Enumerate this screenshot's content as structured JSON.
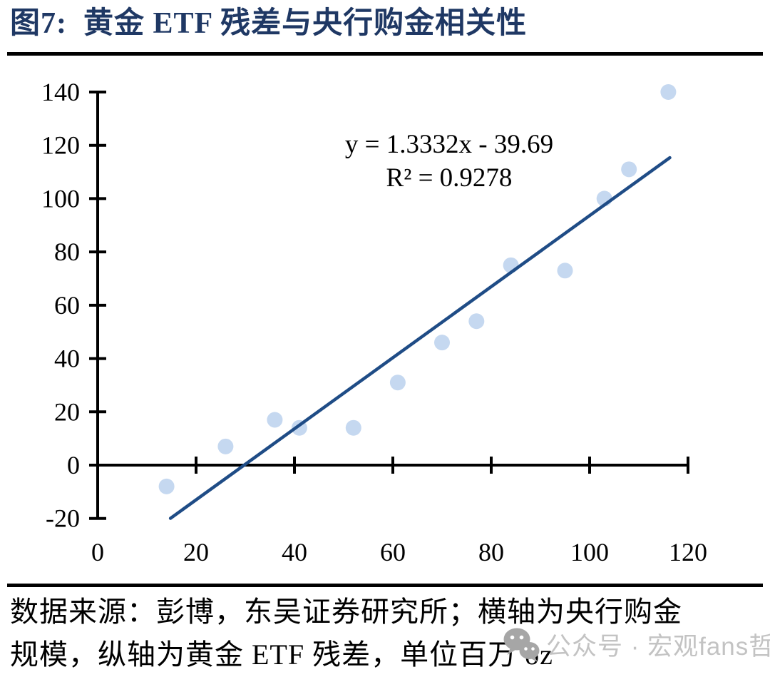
{
  "header": {
    "title": "图7:  黄金 ETF 残差与央行购金相关性"
  },
  "chart_data": {
    "type": "scatter",
    "title": "",
    "xlabel": "",
    "ylabel": "",
    "xlim": [
      0,
      120
    ],
    "ylim": [
      -20,
      140
    ],
    "x_ticks": [
      0,
      20,
      40,
      60,
      80,
      100,
      120
    ],
    "y_ticks": [
      -20,
      0,
      20,
      40,
      60,
      80,
      100,
      120,
      140
    ],
    "grid": "off",
    "legend": "none",
    "points": [
      {
        "x": 14,
        "y": -8
      },
      {
        "x": 26,
        "y": 7
      },
      {
        "x": 36,
        "y": 17
      },
      {
        "x": 41,
        "y": 14
      },
      {
        "x": 52,
        "y": 14
      },
      {
        "x": 61,
        "y": 31
      },
      {
        "x": 70,
        "y": 46
      },
      {
        "x": 77,
        "y": 54
      },
      {
        "x": 84,
        "y": 75
      },
      {
        "x": 95,
        "y": 73
      },
      {
        "x": 103,
        "y": 100
      },
      {
        "x": 108,
        "y": 111
      },
      {
        "x": 116,
        "y": 140
      }
    ],
    "trendline": {
      "slope": 1.3332,
      "intercept": -39.69,
      "x_start": 14.8,
      "x_end": 116.3,
      "label_line1": "y = 1.3332x - 39.69",
      "label_line2": "R² = 0.9278"
    },
    "colors": {
      "point": "#C5D8F0",
      "trend": "#1F4C86",
      "axis": "#000000",
      "title": "#1F3864"
    }
  },
  "footer": {
    "source_line1": "数据来源：彭博，东吴证券研究所；横轴为央行购金",
    "source_line2": "规模，纵轴为黄金 ETF 残差，单位百万 oz"
  },
  "watermark": {
    "icon": "wechat-icon",
    "label": "公众号 · 宏观fans哲"
  }
}
